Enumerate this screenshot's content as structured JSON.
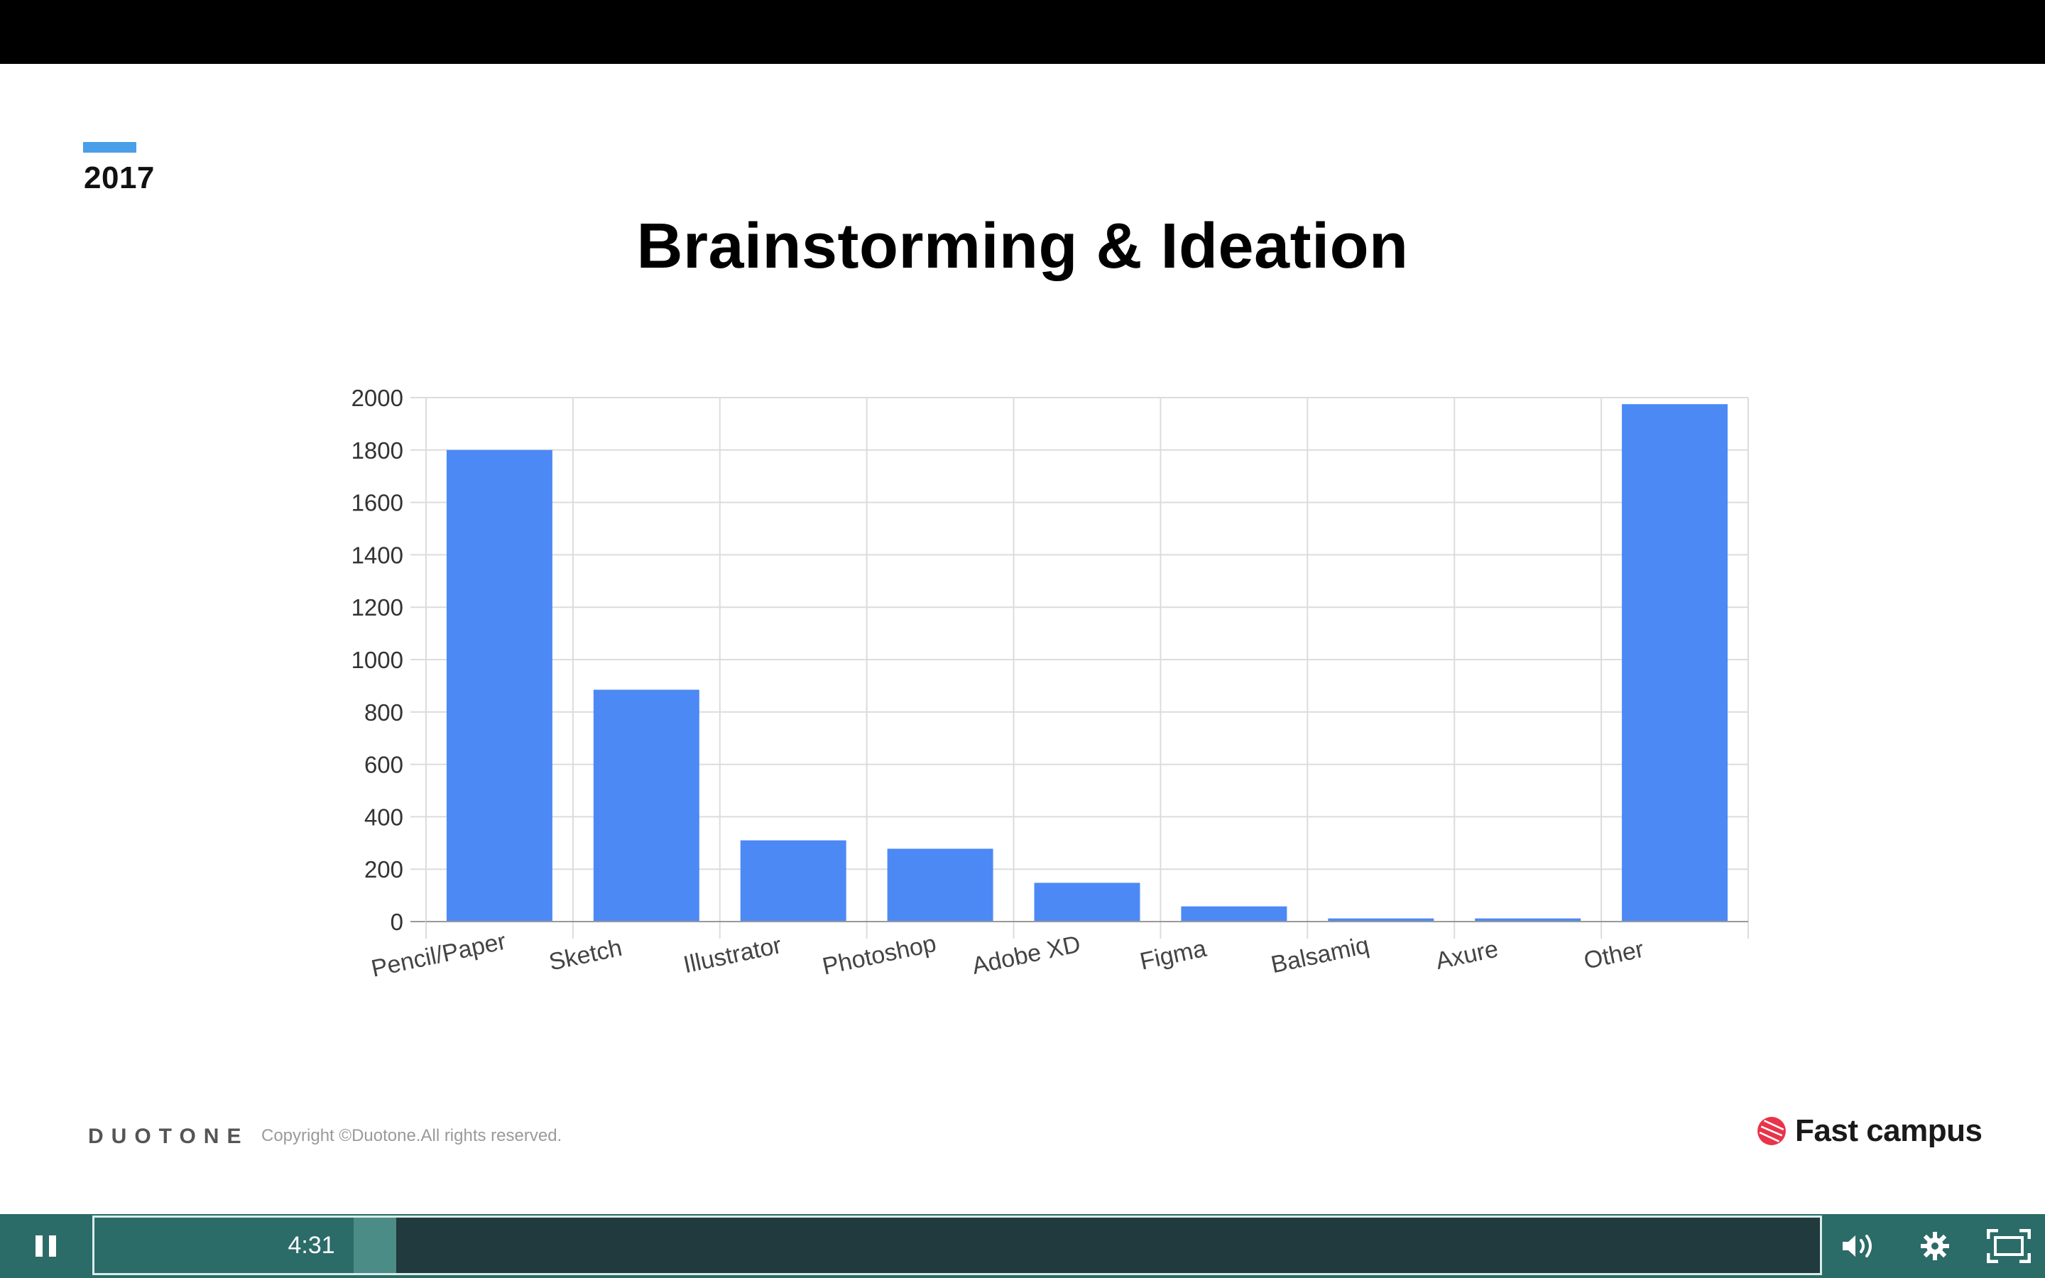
{
  "slide": {
    "year": "2017",
    "title": "Brainstorming & Ideation"
  },
  "footer": {
    "brand": "DUOTONE",
    "copyright": "Copyright ©Duotone.All rights reserved.",
    "logo_text": "Fast campus"
  },
  "player": {
    "current_time": "4:31",
    "progress": 0.15,
    "buffered": 0.175,
    "accent_color": "#2b6b68"
  },
  "chart_data": {
    "type": "bar",
    "title": "Brainstorming & Ideation",
    "categories": [
      "Pencil/Paper",
      "Sketch",
      "Illustrator",
      "Photoshop",
      "Adobe XD",
      "Figma",
      "Balsamiq",
      "Axure",
      "Other"
    ],
    "values": [
      1800,
      885,
      310,
      278,
      148,
      58,
      12,
      12,
      1975
    ],
    "ylim": [
      0,
      2000
    ],
    "yticks": [
      0,
      200,
      400,
      600,
      800,
      1000,
      1200,
      1400,
      1600,
      1800,
      2000
    ],
    "bar_color": "#4c89f5",
    "grid": true,
    "xlabel": "",
    "ylabel": ""
  }
}
